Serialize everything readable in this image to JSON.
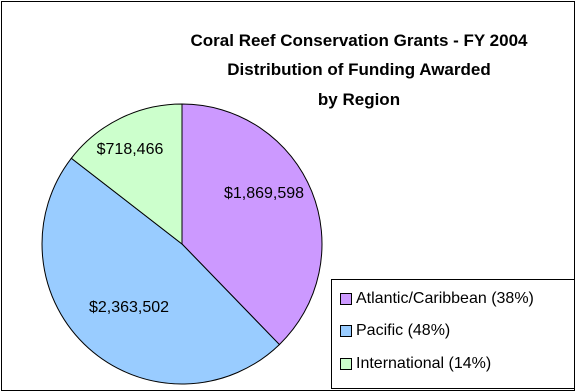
{
  "chart_data": {
    "type": "pie",
    "title_lines": [
      "Coral Reef Conservation Grants - FY 2004",
      "Distribution of Funding Awarded",
      "by Region"
    ],
    "slices": [
      {
        "label": "Atlantic/Caribbean (38%)",
        "value": 1869598,
        "display": "$1,869,598",
        "color": "#cc99ff"
      },
      {
        "label": "Pacific (48%)",
        "value": 2363502,
        "display": "$2,363,502",
        "color": "#99ccff"
      },
      {
        "label": "International (14%)",
        "value": 718466,
        "display": "$718,466",
        "color": "#ccffcc"
      }
    ],
    "start_angle_deg": 0,
    "direction": "clockwise",
    "legend_position": "bottom-right"
  }
}
